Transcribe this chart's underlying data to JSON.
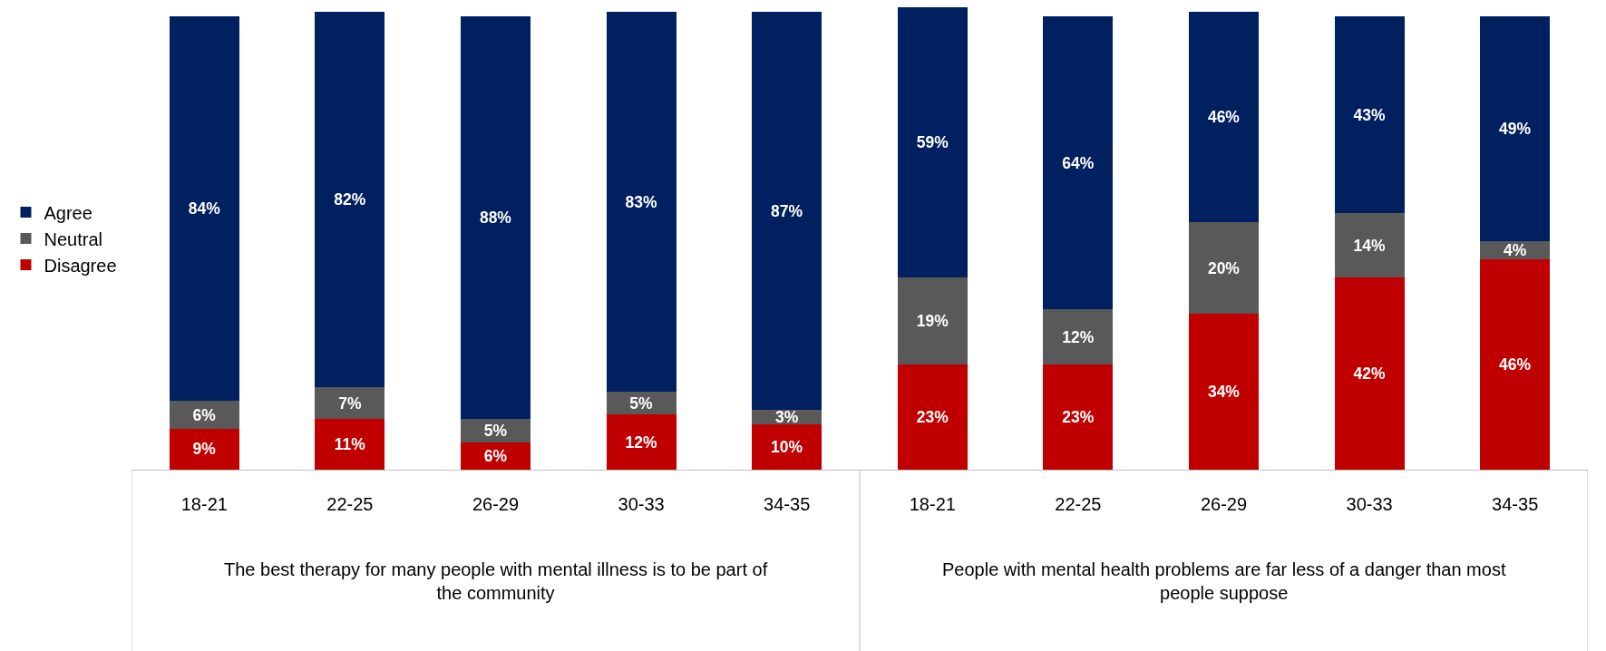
{
  "chart_data": {
    "type": "bar",
    "stacked": true,
    "legend": "left",
    "categories": [
      "18-21",
      "22-25",
      "26-29",
      "30-33",
      "34-35",
      "18-21",
      "22-25",
      "26-29",
      "30-33",
      "34-35"
    ],
    "series": [
      {
        "name": "Disagree",
        "color": "#c00000",
        "values": [
          9,
          11,
          6,
          12,
          10,
          23,
          23,
          34,
          42,
          46
        ],
        "value_labels": [
          "9%",
          "11%",
          "6%",
          "12%",
          "10%",
          "23%",
          "23%",
          "34%",
          "42%",
          "46%"
        ]
      },
      {
        "name": "Neutral",
        "color": "#595959",
        "values": [
          6,
          7,
          5,
          5,
          3,
          19,
          12,
          20,
          14,
          4
        ],
        "value_labels": [
          "6%",
          "7%",
          "5%",
          "5%",
          "3%",
          "19%",
          "12%",
          "20%",
          "14%",
          "4%"
        ]
      },
      {
        "name": "Agree",
        "color": "#002060",
        "values": [
          84,
          82,
          88,
          83,
          87,
          59,
          64,
          46,
          43,
          49
        ],
        "value_labels": [
          "84%",
          "82%",
          "88%",
          "83%",
          "87%",
          "59%",
          "64%",
          "46%",
          "43%",
          "49%"
        ]
      }
    ],
    "annotations": [
      "The best therapy for many people with mental illness is to be part of the community",
      "People with mental health problems are far less of a danger than most people suppose"
    ]
  }
}
